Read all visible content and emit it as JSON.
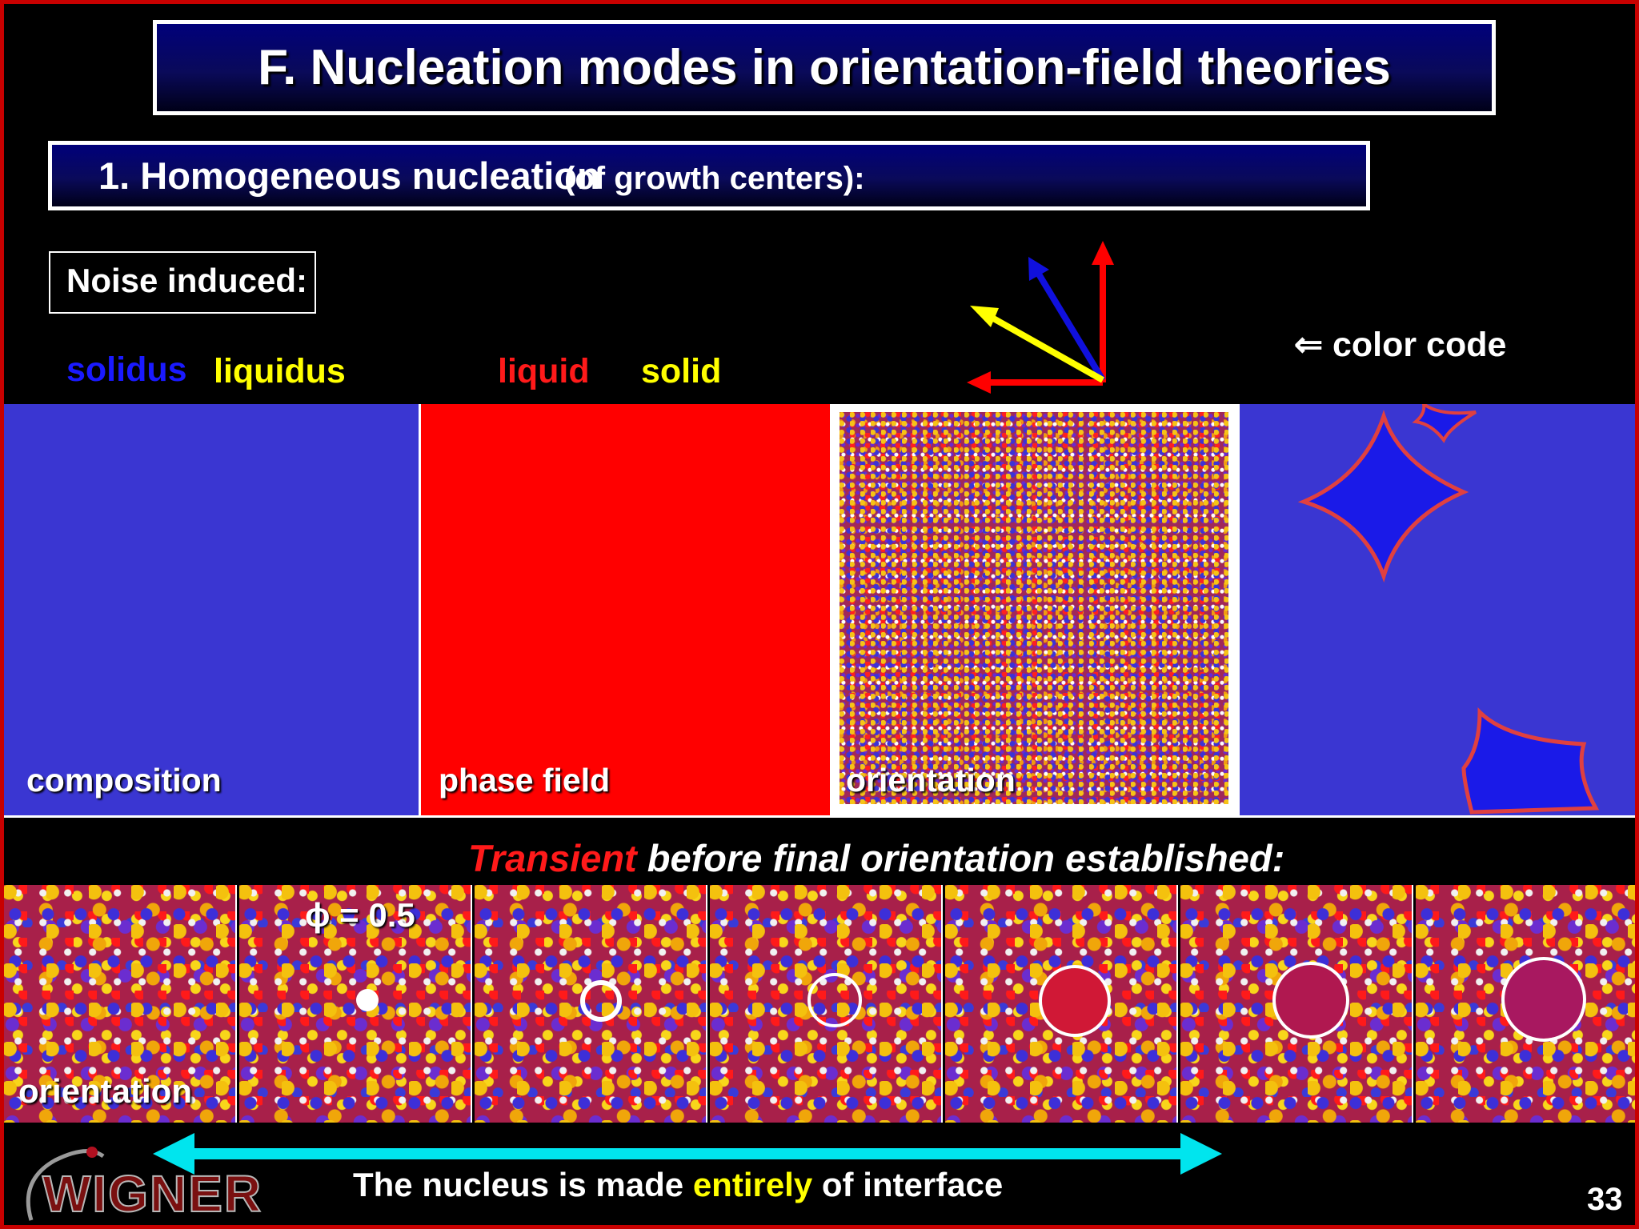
{
  "title": "F. Nucleation modes in orientation-field theories",
  "subtitle": {
    "main": "1. Homogeneous nucleation",
    "paren": "(of growth centers):"
  },
  "noise_label": "Noise induced:",
  "legend": {
    "solidus": "solidus",
    "liquidus": "liquidus",
    "liquid": "liquid",
    "solid": "solid",
    "color_code": "⇐  color code"
  },
  "panels": {
    "composition": "composition",
    "phase_field": "phase field",
    "orientation": "orientation"
  },
  "transient": {
    "highlight": "Transient",
    "rest": " before final orientation established:"
  },
  "strip": {
    "phi_label": "ϕ = 0.5",
    "orientation_label": "orientation"
  },
  "nucleus": {
    "pre": "The nucleus is made ",
    "highlight": "entirely",
    "post": " of interface"
  },
  "logo_text": "WIGNER",
  "page_number": "33",
  "colors": {
    "frame": "#c80000",
    "title_bg": "#00007a",
    "solidus": "#1a1aff",
    "liquidus": "#ffff00",
    "liquid": "#ff1a1a",
    "composition_blue": "#3a36d2",
    "phase_red": "#ff0000",
    "arrow_cyan": "#00e5ee",
    "highlight_yellow": "#ffff00",
    "transient_red": "#ff1a1a"
  }
}
